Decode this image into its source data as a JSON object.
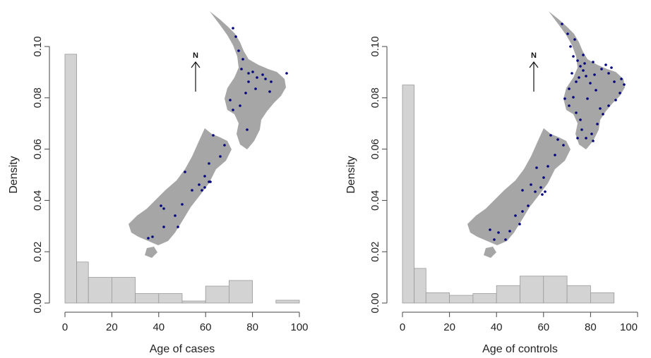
{
  "chart_data": [
    {
      "type": "bar",
      "panel": "left",
      "histogram": true,
      "bins": [
        [
          0,
          5
        ],
        [
          5,
          10
        ],
        [
          10,
          20
        ],
        [
          20,
          30
        ],
        [
          30,
          40
        ],
        [
          40,
          50
        ],
        [
          50,
          60
        ],
        [
          60,
          70
        ],
        [
          70,
          80
        ],
        [
          80,
          90
        ],
        [
          90,
          100
        ]
      ],
      "values": [
        0.097,
        0.016,
        0.01,
        0.01,
        0.0037,
        0.0037,
        0.0008,
        0.0066,
        0.0088,
        0.0,
        0.0011
      ],
      "xlabel": "Age of cases",
      "ylabel": "Density",
      "xlim": [
        0,
        100
      ],
      "ylim": [
        0,
        0.1
      ],
      "xticks": [
        "0",
        "20",
        "40",
        "60",
        "80",
        "100"
      ],
      "yticks": [
        "0.00",
        "0.02",
        "0.04",
        "0.06",
        "0.08",
        "0.10"
      ],
      "bar_color": "#d3d3d3",
      "inset_map": {
        "north_label": "N",
        "land_color": "#a6a6a6",
        "point_color": "#00007f"
      }
    },
    {
      "type": "bar",
      "panel": "right",
      "histogram": true,
      "bins": [
        [
          0,
          5
        ],
        [
          5,
          10
        ],
        [
          10,
          20
        ],
        [
          20,
          30
        ],
        [
          30,
          40
        ],
        [
          40,
          50
        ],
        [
          50,
          60
        ],
        [
          60,
          70
        ],
        [
          70,
          80
        ],
        [
          80,
          90
        ],
        [
          90,
          100
        ]
      ],
      "values": [
        0.085,
        0.0135,
        0.004,
        0.003,
        0.0037,
        0.0068,
        0.0105,
        0.0105,
        0.0068,
        0.004,
        0.0
      ],
      "xlabel": "Age of controls",
      "ylabel": "Density",
      "xlim": [
        0,
        100
      ],
      "ylim": [
        0,
        0.1
      ],
      "xticks": [
        "0",
        "20",
        "40",
        "60",
        "80",
        "100"
      ],
      "yticks": [
        "0.00",
        "0.02",
        "0.04",
        "0.06",
        "0.08",
        "0.10"
      ],
      "bar_color": "#d3d3d3",
      "inset_map": {
        "north_label": "N",
        "land_color": "#a6a6a6",
        "point_color": "#00007f"
      }
    }
  ]
}
